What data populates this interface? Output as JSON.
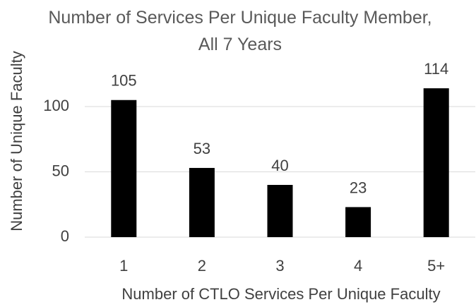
{
  "chart_data": {
    "type": "bar",
    "title": "Number of Services Per Unique Faculty Member, All 7 Years",
    "x_label": "Number of CTLO Services Per Unique Faculty",
    "y_label": "Number of Unique Faculty",
    "categories": [
      "1",
      "2",
      "3",
      "4",
      "5+"
    ],
    "values": [
      105,
      53,
      40,
      23,
      114
    ],
    "color": "#000000",
    "ylim": [
      0,
      120
    ],
    "yticks": [
      0,
      50,
      100
    ],
    "grid": true
  }
}
